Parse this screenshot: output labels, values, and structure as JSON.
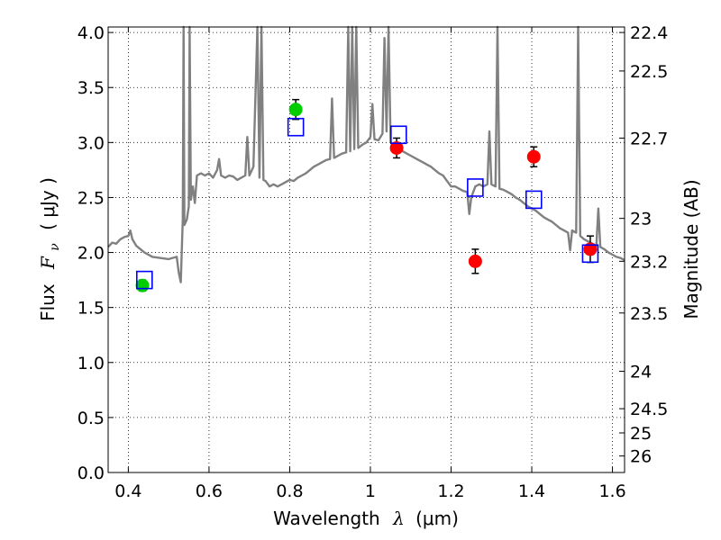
{
  "chart_data": {
    "type": "scatter",
    "xlabel_prefix": "Wavelength",
    "xlabel_symbol": "λ",
    "xlabel_unit": "(μm)",
    "ylabel_prefix": "Flux",
    "ylabel_symbol": "F",
    "ylabel_subscript": "ν",
    "ylabel_unit": "( μJy )",
    "y2label": "Magnitude (AB)",
    "xlim": [
      0.35,
      1.63
    ],
    "ylim": [
      0.0,
      4.05
    ],
    "xticks": [
      0.4,
      0.6,
      0.8,
      1.0,
      1.2,
      1.4,
      1.6
    ],
    "xtick_labels": [
      "0.4",
      "0.6",
      "0.8",
      "1",
      "1.2",
      "1.4",
      "1.6"
    ],
    "yticks": [
      0.0,
      0.5,
      1.0,
      1.5,
      2.0,
      2.5,
      3.0,
      3.5,
      4.0
    ],
    "ytick_labels": [
      "0.0",
      "0.5",
      "1.0",
      "1.5",
      "2.0",
      "2.5",
      "3.0",
      "3.5",
      "4.0"
    ],
    "mag_ticks": [
      {
        "label": "22.4",
        "flux": 4.0
      },
      {
        "label": "22.5",
        "flux": 3.65
      },
      {
        "label": "22.7",
        "flux": 3.04
      },
      {
        "label": "23",
        "flux": 2.31
      },
      {
        "label": "23.2",
        "flux": 1.92
      },
      {
        "label": "23.5",
        "flux": 1.45
      },
      {
        "label": "24",
        "flux": 0.92
      },
      {
        "label": "24.5",
        "flux": 0.58
      },
      {
        "label": "25",
        "flux": 0.36
      },
      {
        "label": "26",
        "flux": 0.15
      }
    ],
    "grid": true,
    "colors": {
      "green": "#00cc00",
      "red": "#ff0000",
      "model_box": "#0000ff",
      "spectrum": "#808080"
    },
    "series": [
      {
        "name": "green-points",
        "points": [
          {
            "x": 0.435,
            "y": 1.7,
            "err": 0.05
          },
          {
            "x": 0.815,
            "y": 3.3,
            "err": 0.09
          }
        ]
      },
      {
        "name": "red-points",
        "points": [
          {
            "x": 1.065,
            "y": 2.95,
            "err": 0.09
          },
          {
            "x": 1.26,
            "y": 1.92,
            "err": 0.11
          },
          {
            "x": 1.405,
            "y": 2.87,
            "err": 0.09
          },
          {
            "x": 1.545,
            "y": 2.03,
            "err": 0.12
          }
        ]
      },
      {
        "name": "model-boxes",
        "points": [
          {
            "x": 0.44,
            "y": 1.75
          },
          {
            "x": 0.815,
            "y": 3.14
          },
          {
            "x": 1.07,
            "y": 3.07
          },
          {
            "x": 1.26,
            "y": 2.59
          },
          {
            "x": 1.405,
            "y": 2.48
          },
          {
            "x": 1.545,
            "y": 1.99
          }
        ]
      }
    ],
    "spectrum": [
      [
        0.35,
        2.05
      ],
      [
        0.36,
        2.09
      ],
      [
        0.37,
        2.08
      ],
      [
        0.38,
        2.12
      ],
      [
        0.39,
        2.14
      ],
      [
        0.4,
        2.15
      ],
      [
        0.405,
        2.2
      ],
      [
        0.41,
        2.12
      ],
      [
        0.42,
        2.06
      ],
      [
        0.44,
        2.0
      ],
      [
        0.46,
        1.96
      ],
      [
        0.48,
        1.95
      ],
      [
        0.5,
        1.94
      ],
      [
        0.52,
        1.96
      ],
      [
        0.525,
        1.82
      ],
      [
        0.53,
        1.73
      ],
      [
        0.535,
        2.3
      ],
      [
        0.537,
        4.05
      ],
      [
        0.539,
        2.25
      ],
      [
        0.545,
        2.3
      ],
      [
        0.55,
        2.42
      ],
      [
        0.552,
        4.05
      ],
      [
        0.555,
        2.48
      ],
      [
        0.56,
        2.6
      ],
      [
        0.565,
        2.45
      ],
      [
        0.57,
        2.7
      ],
      [
        0.58,
        2.72
      ],
      [
        0.59,
        2.7
      ],
      [
        0.6,
        2.72
      ],
      [
        0.61,
        2.68
      ],
      [
        0.62,
        2.75
      ],
      [
        0.625,
        2.85
      ],
      [
        0.63,
        2.7
      ],
      [
        0.64,
        2.68
      ],
      [
        0.65,
        2.7
      ],
      [
        0.66,
        2.69
      ],
      [
        0.67,
        2.66
      ],
      [
        0.68,
        2.68
      ],
      [
        0.69,
        2.7
      ],
      [
        0.695,
        3.05
      ],
      [
        0.7,
        2.7
      ],
      [
        0.71,
        2.78
      ],
      [
        0.72,
        4.05
      ],
      [
        0.725,
        2.68
      ],
      [
        0.73,
        4.05
      ],
      [
        0.735,
        2.66
      ],
      [
        0.74,
        2.65
      ],
      [
        0.75,
        2.6
      ],
      [
        0.76,
        2.62
      ],
      [
        0.77,
        2.6
      ],
      [
        0.78,
        2.62
      ],
      [
        0.79,
        2.64
      ],
      [
        0.8,
        2.66
      ],
      [
        0.81,
        2.65
      ],
      [
        0.82,
        2.68
      ],
      [
        0.83,
        2.7
      ],
      [
        0.84,
        2.72
      ],
      [
        0.85,
        2.75
      ],
      [
        0.86,
        2.78
      ],
      [
        0.87,
        2.8
      ],
      [
        0.88,
        2.82
      ],
      [
        0.89,
        2.84
      ],
      [
        0.9,
        2.85
      ],
      [
        0.905,
        3.4
      ],
      [
        0.91,
        2.86
      ],
      [
        0.92,
        2.88
      ],
      [
        0.93,
        2.9
      ],
      [
        0.94,
        2.91
      ],
      [
        0.945,
        4.05
      ],
      [
        0.95,
        2.92
      ],
      [
        0.955,
        4.05
      ],
      [
        0.96,
        2.94
      ],
      [
        0.965,
        4.05
      ],
      [
        0.97,
        2.95
      ],
      [
        0.98,
        2.98
      ],
      [
        0.99,
        3.0
      ],
      [
        1.0,
        3.05
      ],
      [
        1.005,
        3.35
      ],
      [
        1.01,
        3.03
      ],
      [
        1.02,
        3.02
      ],
      [
        1.03,
        3.08
      ],
      [
        1.035,
        3.95
      ],
      [
        1.04,
        3.1
      ],
      [
        1.045,
        4.05
      ],
      [
        1.05,
        3.0
      ],
      [
        1.06,
        2.98
      ],
      [
        1.07,
        2.95
      ],
      [
        1.08,
        2.92
      ],
      [
        1.09,
        2.9
      ],
      [
        1.1,
        2.88
      ],
      [
        1.11,
        2.86
      ],
      [
        1.12,
        2.84
      ],
      [
        1.13,
        2.82
      ],
      [
        1.14,
        2.8
      ],
      [
        1.15,
        2.78
      ],
      [
        1.16,
        2.75
      ],
      [
        1.17,
        2.72
      ],
      [
        1.18,
        2.7
      ],
      [
        1.19,
        2.65
      ],
      [
        1.2,
        2.6
      ],
      [
        1.21,
        2.6
      ],
      [
        1.22,
        2.58
      ],
      [
        1.23,
        2.56
      ],
      [
        1.24,
        2.55
      ],
      [
        1.245,
        2.35
      ],
      [
        1.25,
        2.5
      ],
      [
        1.26,
        2.6
      ],
      [
        1.27,
        2.62
      ],
      [
        1.28,
        2.6
      ],
      [
        1.29,
        2.62
      ],
      [
        1.295,
        3.1
      ],
      [
        1.3,
        2.62
      ],
      [
        1.31,
        2.6
      ],
      [
        1.315,
        4.05
      ],
      [
        1.32,
        2.58
      ],
      [
        1.33,
        2.57
      ],
      [
        1.34,
        2.55
      ],
      [
        1.35,
        2.53
      ],
      [
        1.36,
        2.5
      ],
      [
        1.37,
        2.48
      ],
      [
        1.38,
        2.45
      ],
      [
        1.39,
        2.42
      ],
      [
        1.4,
        2.4
      ],
      [
        1.41,
        2.38
      ],
      [
        1.42,
        2.35
      ],
      [
        1.43,
        2.32
      ],
      [
        1.44,
        2.3
      ],
      [
        1.45,
        2.28
      ],
      [
        1.46,
        2.25
      ],
      [
        1.47,
        2.22
      ],
      [
        1.48,
        2.2
      ],
      [
        1.49,
        2.18
      ],
      [
        1.495,
        2.02
      ],
      [
        1.5,
        2.2
      ],
      [
        1.51,
        2.18
      ],
      [
        1.515,
        4.05
      ],
      [
        1.52,
        2.15
      ],
      [
        1.53,
        2.12
      ],
      [
        1.54,
        2.1
      ],
      [
        1.55,
        2.08
      ],
      [
        1.56,
        2.06
      ],
      [
        1.565,
        2.4
      ],
      [
        1.57,
        2.05
      ],
      [
        1.58,
        2.03
      ],
      [
        1.59,
        2.0
      ],
      [
        1.6,
        1.98
      ],
      [
        1.61,
        1.96
      ],
      [
        1.62,
        1.95
      ],
      [
        1.63,
        1.93
      ]
    ]
  }
}
